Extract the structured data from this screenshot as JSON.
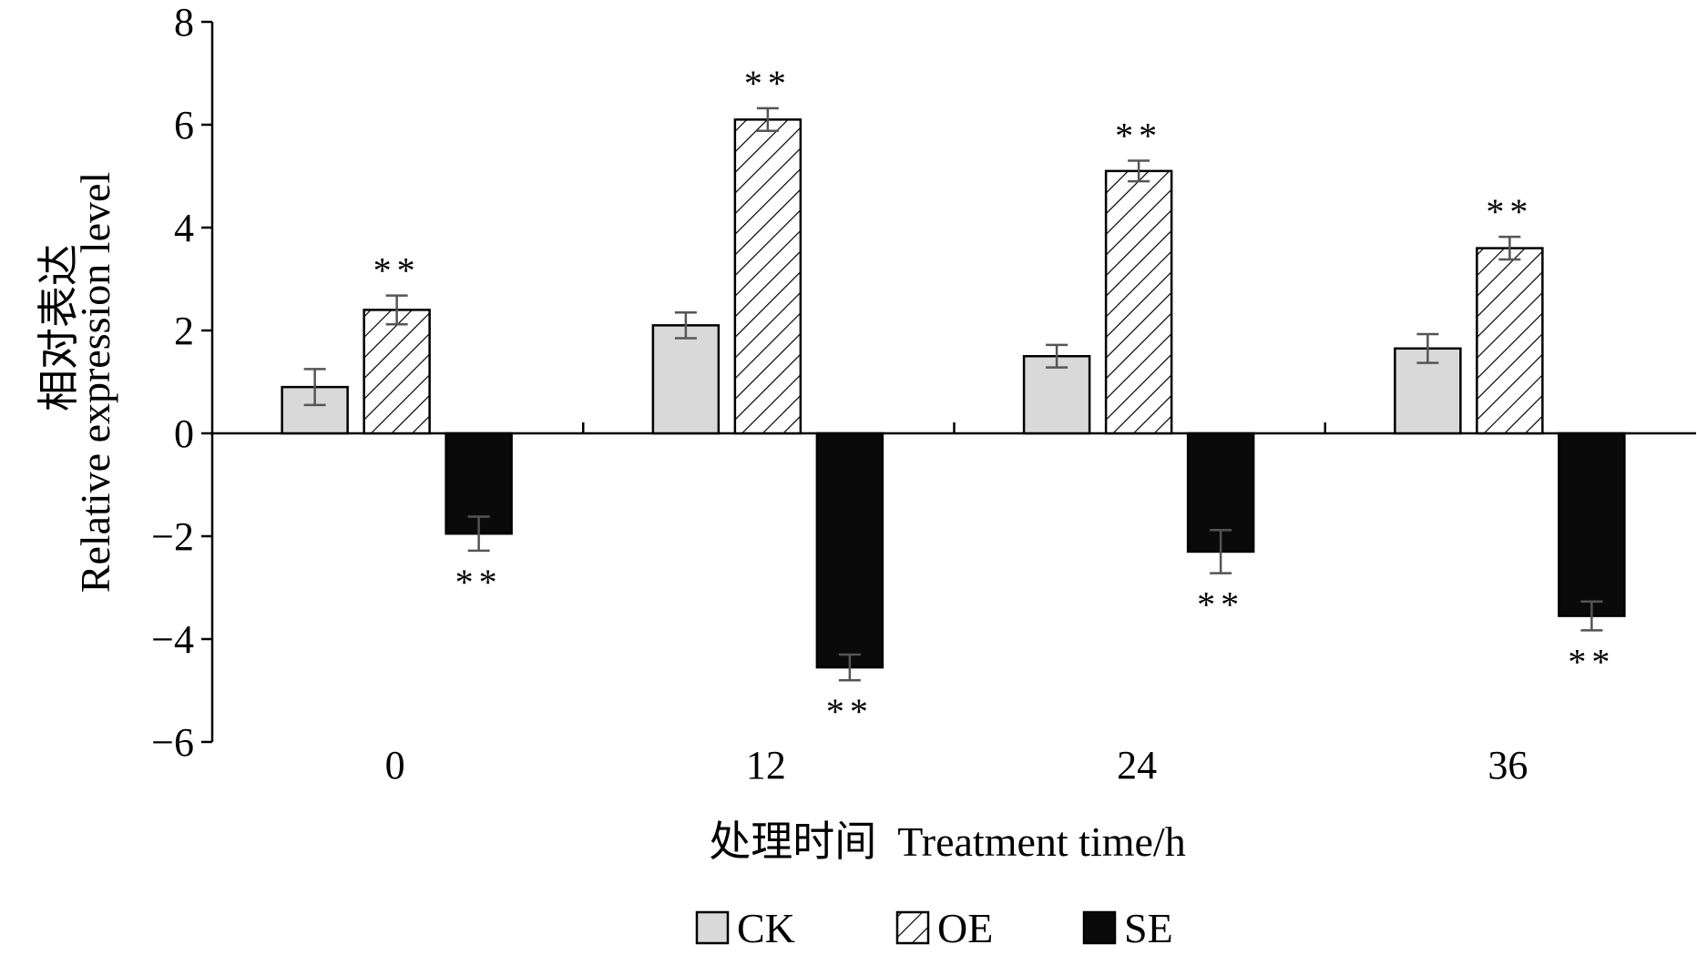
{
  "chart_data": {
    "type": "bar",
    "title": "",
    "xlabel": "处理时间  Treatment time/h",
    "ylabel": "相对表达 Relative expression level",
    "ylabel_cn": "相对表达",
    "ylabel_en": "Relative expression level",
    "categories": [
      "0",
      "12",
      "24",
      "36"
    ],
    "ylim": [
      -6,
      8
    ],
    "yticks": [
      -6,
      -4,
      -2,
      0,
      2,
      4,
      6,
      8
    ],
    "ytick_labels": [
      "−6",
      "−4",
      "−2",
      "0",
      "2",
      "4",
      "6",
      "8"
    ],
    "grid": false,
    "legend_position": "bottom",
    "significance_marker": "**",
    "series": [
      {
        "name": "CK",
        "pattern": "solid-light",
        "color": "#d9d9d9",
        "values": [
          0.9,
          2.1,
          1.5,
          1.65
        ],
        "errors": [
          0.35,
          0.25,
          0.22,
          0.28
        ],
        "significance": [
          "",
          "",
          "",
          ""
        ]
      },
      {
        "name": "OE",
        "pattern": "hatched",
        "color": "#ffffff",
        "values": [
          2.4,
          6.1,
          5.1,
          3.6
        ],
        "errors": [
          0.28,
          0.22,
          0.2,
          0.22
        ],
        "significance": [
          "**",
          "**",
          "**",
          "**"
        ]
      },
      {
        "name": "SE",
        "pattern": "solid-dark",
        "color": "#000000",
        "values": [
          -1.95,
          -4.55,
          -2.3,
          -3.55
        ],
        "errors": [
          0.33,
          0.25,
          0.42,
          0.28
        ],
        "significance": [
          "**",
          "**",
          "**",
          "**"
        ]
      }
    ]
  }
}
